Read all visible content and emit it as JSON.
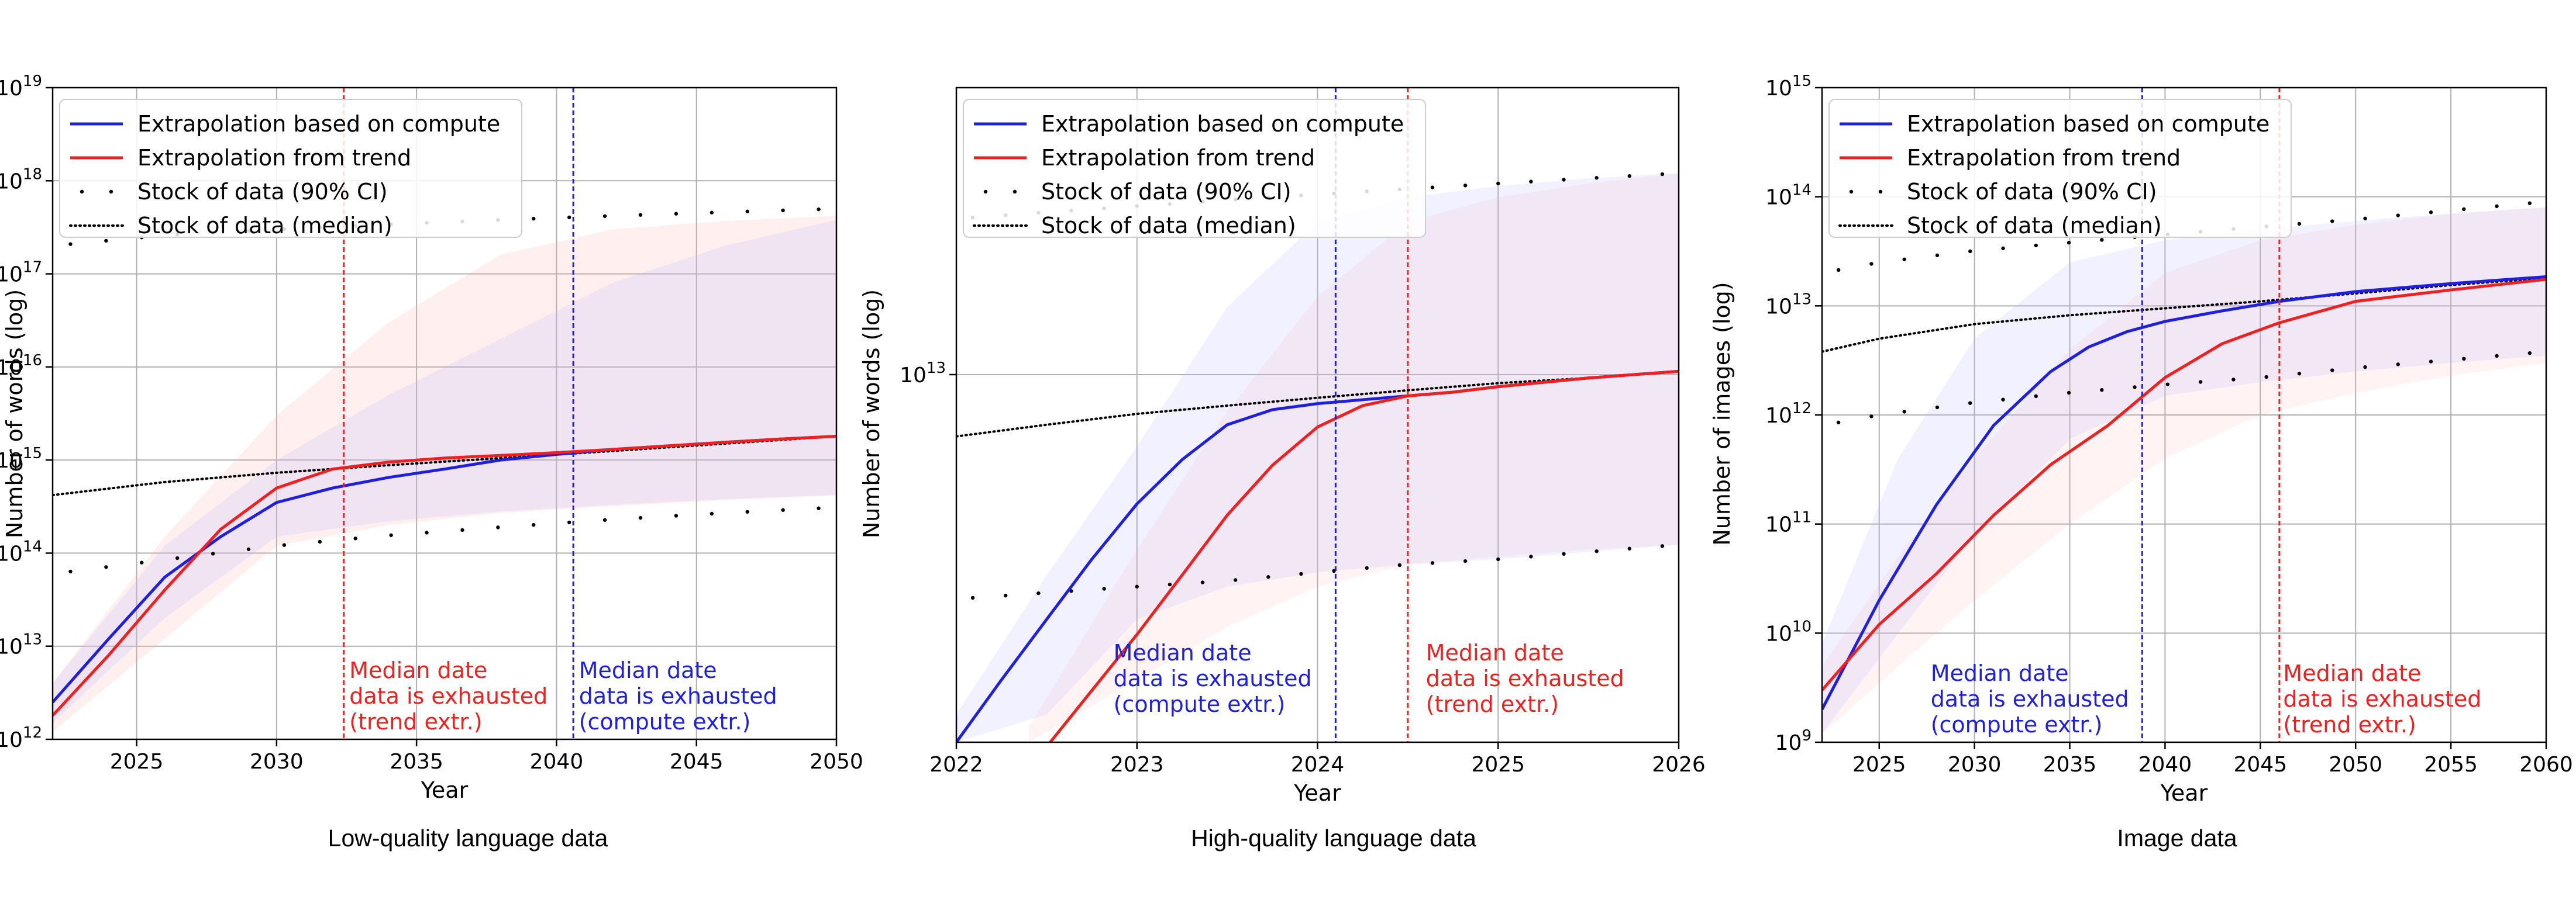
{
  "chart_data": [
    {
      "type": "line",
      "caption": "Low-quality language data",
      "xlabel": "Year",
      "ylabel": "Number of words (log)",
      "log_y": true,
      "grid": true,
      "xlim": [
        2022,
        2050
      ],
      "ylim": [
        1000000000000.0,
        1e+19
      ],
      "xticks": [
        2025,
        2030,
        2035,
        2040,
        2045,
        2050
      ],
      "yticks": [
        {
          "exp": 12
        },
        {
          "exp": 13
        },
        {
          "exp": 14
        },
        {
          "exp": 15
        },
        {
          "exp": 16
        },
        {
          "exp": 17
        },
        {
          "exp": 18
        },
        {
          "exp": 19
        }
      ],
      "legend": {
        "position": "top-left",
        "entries": [
          {
            "label": "Extrapolation based on compute",
            "style": "line",
            "color": "#1f1fe0"
          },
          {
            "label": "Extrapolation from trend",
            "style": "line",
            "color": "#ee2020"
          },
          {
            "label": "Stock of data (90% CI)",
            "style": "dots",
            "color": "#000000"
          },
          {
            "label": "Stock of data (median)",
            "style": "dotted",
            "color": "#000000"
          }
        ]
      },
      "series": [
        {
          "name": "Extrapolation based on compute",
          "color": "#1f1fe0",
          "x": [
            2022,
            2024,
            2026,
            2028,
            2030,
            2032,
            2034,
            2036,
            2038,
            2040,
            2042,
            2044,
            2046,
            2048,
            2050
          ],
          "y": [
            2500000000000.0,
            12000000000000.0,
            55000000000000.0,
            150000000000000.0,
            350000000000000.0,
            500000000000000.0,
            650000000000000.0,
            800000000000000.0,
            1000000000000000.0,
            1150000000000000.0,
            1300000000000000.0,
            1420000000000000.0,
            1550000000000000.0,
            1680000000000000.0,
            1800000000000000.0
          ]
        },
        {
          "name": "Extrapolation from trend",
          "color": "#ee2020",
          "x": [
            2022,
            2024,
            2026,
            2028,
            2030,
            2032,
            2034,
            2036,
            2038,
            2040,
            2042,
            2044,
            2046,
            2048,
            2050
          ],
          "y": [
            1800000000000.0,
            8000000000000.0,
            40000000000000.0,
            180000000000000.0,
            500000000000000.0,
            800000000000000.0,
            950000000000000.0,
            1050000000000000.0,
            1120000000000000.0,
            1200000000000000.0,
            1300000000000000.0,
            1420000000000000.0,
            1550000000000000.0,
            1680000000000000.0,
            1800000000000000.0
          ]
        }
      ],
      "stock": {
        "x": [
          2022,
          2026,
          2030,
          2034,
          2038,
          2042,
          2046,
          2050
        ],
        "median": [
          420000000000000.0,
          580000000000000.0,
          730000000000000.0,
          880000000000000.0,
          1050000000000000.0,
          1250000000000000.0,
          1500000000000000.0,
          1800000000000000.0
        ],
        "lower": [
          60000000000000.0,
          85000000000000.0,
          120000000000000.0,
          155000000000000.0,
          190000000000000.0,
          230000000000000.0,
          270000000000000.0,
          310000000000000.0
        ],
        "upper": [
          2e+17,
          2.6e+17,
          3e+17,
          3.4e+17,
          3.8e+17,
          4.2e+17,
          4.6e+17,
          5e+17
        ]
      },
      "bands": [
        {
          "color": "#ffb0b0",
          "opacity": 0.2,
          "x": [
            2022,
            2026,
            2030,
            2034,
            2038,
            2042,
            2046,
            2050
          ],
          "lower": [
            1200000000000.0,
            12000000000000.0,
            120000000000000.0,
            200000000000000.0,
            270000000000000.0,
            320000000000000.0,
            370000000000000.0,
            420000000000000.0
          ],
          "upper": [
            4000000000000.0,
            150000000000000.0,
            3000000000000000.0,
            3e+16,
            1.6e+17,
            3e+17,
            3.7e+17,
            4.2e+17
          ]
        },
        {
          "color": "#b8b8ff",
          "opacity": 0.2,
          "x": [
            2022,
            2026,
            2030,
            2034,
            2038,
            2042,
            2046,
            2050
          ],
          "lower": [
            1500000000000.0,
            20000000000000.0,
            150000000000000.0,
            220000000000000.0,
            280000000000000.0,
            330000000000000.0,
            380000000000000.0,
            420000000000000.0
          ],
          "upper": [
            4000000000000.0,
            120000000000000.0,
            1000000000000000.0,
            5000000000000000.0,
            2e+16,
            8e+16,
            2e+17,
            3.8e+17
          ]
        }
      ],
      "vlines": [
        {
          "x": 2032.4,
          "color": "#ee2020",
          "text": [
            "Median date",
            "data is exhausted",
            "(trend extr.)"
          ],
          "text_x": 2032.6
        },
        {
          "x": 2040.6,
          "color": "#1f1fe0",
          "text": [
            "Median date",
            "data is exhausted",
            "(compute extr.)"
          ],
          "text_x": 2040.8
        }
      ]
    },
    {
      "type": "line",
      "caption": "High-quality language data",
      "xlabel": "Year",
      "ylabel": "Number of words (log)",
      "log_y": true,
      "grid": true,
      "xlim": [
        2022,
        2026
      ],
      "ylim": [
        1100000000000.0,
        56000000000000.0
      ],
      "xticks": [
        2022,
        2023,
        2024,
        2025,
        2026
      ],
      "yticks": [
        {
          "exp": 13
        }
      ],
      "legend": {
        "position": "top-left",
        "entries": [
          {
            "label": "Extrapolation based on compute",
            "style": "line",
            "color": "#1f1fe0"
          },
          {
            "label": "Extrapolation from trend",
            "style": "line",
            "color": "#ee2020"
          },
          {
            "label": "Stock of data (90% CI)",
            "style": "dots",
            "color": "#000000"
          },
          {
            "label": "Stock of data (median)",
            "style": "dotted",
            "color": "#000000"
          }
        ]
      },
      "series": [
        {
          "name": "Extrapolation based on compute",
          "color": "#1f1fe0",
          "x": [
            2022,
            2022.25,
            2022.5,
            2022.75,
            2023,
            2023.25,
            2023.5,
            2023.75,
            2024,
            2024.25,
            2024.5,
            2024.75,
            2025,
            2025.5,
            2026
          ],
          "y": [
            1100000000000.0,
            1600000000000.0,
            2300000000000.0,
            3300000000000.0,
            4600000000000.0,
            6000000000000.0,
            7400000000000.0,
            8100000000000.0,
            8400000000000.0,
            8600000000000.0,
            8800000000000.0,
            9000000000000.0,
            9300000000000.0,
            9800000000000.0,
            10200000000000.0
          ]
        },
        {
          "name": "Extrapolation from trend",
          "color": "#ee2020",
          "x": [
            2022.52,
            2022.75,
            2023,
            2023.25,
            2023.5,
            2023.75,
            2024,
            2024.25,
            2024.5,
            2024.75,
            2025,
            2025.5,
            2026
          ],
          "y": [
            1100000000000.0,
            1500000000000.0,
            2100000000000.0,
            3000000000000.0,
            4300000000000.0,
            5800000000000.0,
            7300000000000.0,
            8300000000000.0,
            8800000000000.0,
            9000000000000.0,
            9300000000000.0,
            9800000000000.0,
            10200000000000.0
          ]
        }
      ],
      "stock": {
        "x": [
          2022,
          2022.5,
          2023,
          2023.5,
          2024,
          2024.5,
          2025,
          2025.5,
          2026
        ],
        "median": [
          6900000000000.0,
          7400000000000.0,
          7900000000000.0,
          8300000000000.0,
          8700000000000.0,
          9100000000000.0,
          9500000000000.0,
          9800000000000.0,
          10200000000000.0
        ],
        "lower": [
          2600000000000.0,
          2700000000000.0,
          2800000000000.0,
          2900000000000.0,
          3050000000000.0,
          3200000000000.0,
          3300000000000.0,
          3450000000000.0,
          3600000000000.0
        ],
        "upper": [
          25500000000000.0,
          26500000000000.0,
          27500000000000.0,
          28500000000000.0,
          29500000000000.0,
          30500000000000.0,
          31500000000000.0,
          32500000000000.0,
          33500000000000.0
        ]
      },
      "bands": [
        {
          "color": "#ffb0b0",
          "opacity": 0.15,
          "x": [
            2022.4,
            2023,
            2023.5,
            2024,
            2024.5,
            2025,
            2025.5,
            2026
          ],
          "lower": [
            1100000000000.0,
            1600000000000.0,
            2200000000000.0,
            2800000000000.0,
            3200000000000.0,
            3350000000000.0,
            3500000000000.0,
            3600000000000.0
          ],
          "upper": [
            1200000000000.0,
            3500000000000.0,
            8000000000000.0,
            16000000000000.0,
            25000000000000.0,
            29000000000000.0,
            31500000000000.0,
            33500000000000.0
          ]
        },
        {
          "color": "#b8b8ff",
          "opacity": 0.2,
          "x": [
            2022,
            2022.5,
            2023,
            2023.5,
            2024,
            2024.5,
            2025,
            2025.5,
            2026
          ],
          "lower": [
            1100000000000.0,
            1300000000000.0,
            2300000000000.0,
            2800000000000.0,
            3050000000000.0,
            3200000000000.0,
            3300000000000.0,
            3450000000000.0,
            3600000000000.0
          ],
          "upper": [
            1300000000000.0,
            3000000000000.0,
            6500000000000.0,
            15000000000000.0,
            25000000000000.0,
            29000000000000.0,
            31000000000000.0,
            32500000000000.0,
            33500000000000.0
          ]
        }
      ],
      "vlines": [
        {
          "x": 2024.5,
          "color": "#ee2020",
          "text": [
            "Median date",
            "data is exhausted",
            "(trend extr.)"
          ],
          "text_x": 2024.6
        },
        {
          "x": 2024.1,
          "color": "#1f1fe0",
          "text": [
            "Median date",
            "data is exhausted",
            "(compute extr.)"
          ],
          "text_x": 2022.87
        }
      ]
    },
    {
      "type": "line",
      "caption": "Image data",
      "xlabel": "Year",
      "ylabel": "Number of images (log)",
      "log_y": true,
      "grid": true,
      "xlim": [
        2022,
        2060
      ],
      "ylim": [
        1000000000.0,
        1000000000000000.0
      ],
      "xticks": [
        2025,
        2030,
        2035,
        2040,
        2045,
        2050,
        2055,
        2060
      ],
      "yticks": [
        {
          "exp": 9
        },
        {
          "exp": 10
        },
        {
          "exp": 11
        },
        {
          "exp": 12
        },
        {
          "exp": 13
        },
        {
          "exp": 14
        },
        {
          "exp": 15
        }
      ],
      "legend": {
        "position": "top-left",
        "entries": [
          {
            "label": "Extrapolation based on compute",
            "style": "line",
            "color": "#1f1fe0"
          },
          {
            "label": "Extrapolation from trend",
            "style": "line",
            "color": "#ee2020"
          },
          {
            "label": "Stock of data (90% CI)",
            "style": "dots",
            "color": "#000000"
          },
          {
            "label": "Stock of data (median)",
            "style": "dotted",
            "color": "#000000"
          }
        ]
      },
      "series": [
        {
          "name": "Extrapolation based on compute",
          "color": "#1f1fe0",
          "x": [
            2022,
            2025,
            2028,
            2031,
            2034,
            2036,
            2038,
            2040,
            2043,
            2046,
            2050,
            2055,
            2060
          ],
          "y": [
            2000000000.0,
            20000000000.0,
            150000000000.0,
            800000000000.0,
            2500000000000.0,
            4200000000000.0,
            5800000000000.0,
            7200000000000.0,
            9000000000000.0,
            11000000000000.0,
            13500000000000.0,
            16000000000000.0,
            18500000000000.0
          ]
        },
        {
          "name": "Extrapolation from trend",
          "color": "#ee2020",
          "x": [
            2022,
            2025,
            2028,
            2031,
            2034,
            2037,
            2040,
            2043,
            2046,
            2050,
            2055,
            2060
          ],
          "y": [
            3000000000.0,
            12000000000.0,
            35000000000.0,
            120000000000.0,
            350000000000.0,
            800000000000.0,
            2200000000000.0,
            4500000000000.0,
            7000000000000.0,
            11000000000000.0,
            14000000000000.0,
            17500000000000.0
          ]
        }
      ],
      "stock": {
        "x": [
          2022,
          2025,
          2030,
          2035,
          2040,
          2045,
          2050,
          2055,
          2060
        ],
        "median": [
          3800000000000.0,
          5000000000000.0,
          6800000000000.0,
          8200000000000.0,
          9500000000000.0,
          11000000000000.0,
          13000000000000.0,
          15500000000000.0,
          18000000000000.0
        ],
        "lower": [
          800000000000.0,
          1000000000000.0,
          1300000000000.0,
          1600000000000.0,
          1900000000000.0,
          2200000000000.0,
          2700000000000.0,
          3200000000000.0,
          3800000000000.0
        ],
        "upper": [
          20000000000000.0,
          25000000000000.0,
          32000000000000.0,
          38000000000000.0,
          45000000000000.0,
          53000000000000.0,
          62000000000000.0,
          75000000000000.0,
          90000000000000.0
        ]
      },
      "bands": [
        {
          "color": "#ffb0b0",
          "opacity": 0.15,
          "x": [
            2022,
            2026,
            2030,
            2035,
            2040,
            2045,
            2050,
            2055,
            2060
          ],
          "lower": [
            1200000000.0,
            5000000000.0,
            20000000000.0,
            100000000000.0,
            400000000000.0,
            1000000000000.0,
            1600000000000.0,
            2300000000000.0,
            3000000000000.0
          ],
          "upper": [
            5000000000.0,
            50000000000.0,
            400000000000.0,
            4000000000000.0,
            20000000000000.0,
            40000000000000.0,
            55000000000000.0,
            70000000000000.0,
            80000000000000.0
          ]
        },
        {
          "color": "#b8b8ff",
          "opacity": 0.2,
          "x": [
            2022,
            2026,
            2030,
            2035,
            2040,
            2045,
            2050,
            2055,
            2060
          ],
          "lower": [
            1200000000.0,
            10000000000.0,
            80000000000.0,
            600000000000.0,
            1500000000000.0,
            2000000000000.0,
            2500000000000.0,
            3000000000000.0,
            3500000000000.0
          ],
          "upper": [
            8000000000.0,
            400000000000.0,
            5000000000000.0,
            25000000000000.0,
            40000000000000.0,
            50000000000000.0,
            60000000000000.0,
            70000000000000.0,
            80000000000000.0
          ]
        }
      ],
      "vlines": [
        {
          "x": 2038.8,
          "color": "#1f1fe0",
          "text": [
            "Median date",
            "data is exhausted",
            "(compute extr.)"
          ],
          "text_x": 2027.7
        },
        {
          "x": 2046,
          "color": "#ee2020",
          "text": [
            "Median date",
            "data is exhausted",
            "(trend extr.)"
          ],
          "text_x": 2046.2
        }
      ]
    }
  ]
}
